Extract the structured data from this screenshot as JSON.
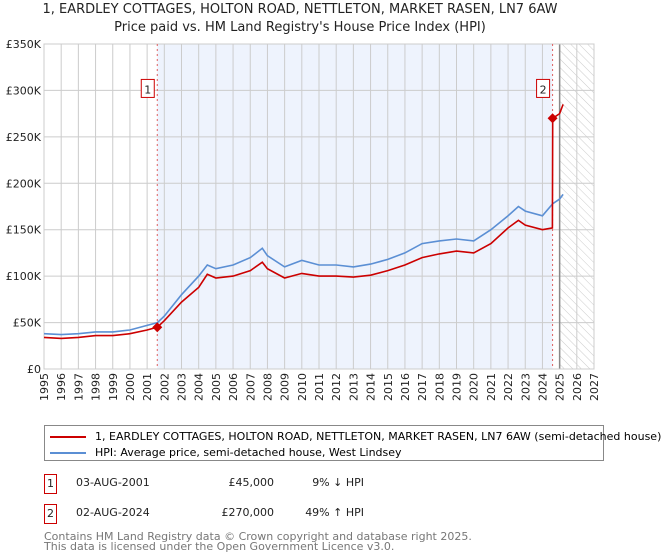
{
  "chart_data": {
    "type": "line",
    "title": "1, EARDLEY COTTAGES, HOLTON ROAD, NETTLETON, MARKET RASEN, LN7 6AW",
    "subtitle": "Price paid vs. HM Land Registry's House Price Index (HPI)",
    "xlim": [
      1995,
      2027
    ],
    "ylim": [
      0,
      350000
    ],
    "x_ticks": [
      "1995",
      "1996",
      "1997",
      "1998",
      "1999",
      "2000",
      "2001",
      "2002",
      "2003",
      "2004",
      "2005",
      "2006",
      "2007",
      "2008",
      "2009",
      "2010",
      "2011",
      "2012",
      "2013",
      "2014",
      "2015",
      "2016",
      "2017",
      "2018",
      "2019",
      "2020",
      "2021",
      "2022",
      "2023",
      "2024",
      "2025",
      "2026",
      "2027"
    ],
    "y_ticks": [
      {
        "v": 0,
        "label": "£0"
      },
      {
        "v": 50000,
        "label": "£50K"
      },
      {
        "v": 100000,
        "label": "£100K"
      },
      {
        "v": 150000,
        "label": "£150K"
      },
      {
        "v": 200000,
        "label": "£200K"
      },
      {
        "v": 250000,
        "label": "£250K"
      },
      {
        "v": 300000,
        "label": "£300K"
      },
      {
        "v": 350000,
        "label": "£350K"
      }
    ],
    "grid": true,
    "series": [
      {
        "name": "1, EARDLEY COTTAGES, HOLTON ROAD, NETTLETON, MARKET RASEN, LN7 6AW (semi-detached house)",
        "color": "#cc0000",
        "x": [
          1995,
          1996,
          1997,
          1998,
          1999,
          2000,
          2001,
          2001.6,
          2002,
          2003,
          2004,
          2004.5,
          2005,
          2006,
          2007,
          2007.7,
          2008,
          2009,
          2010,
          2011,
          2012,
          2013,
          2014,
          2015,
          2016,
          2017,
          2018,
          2019,
          2020,
          2021,
          2022,
          2022.6,
          2023,
          2024,
          2024.58,
          2024.6,
          2025,
          2025.2
        ],
        "y": [
          34000,
          33000,
          34000,
          36000,
          36000,
          38000,
          42000,
          45000,
          52000,
          72000,
          88000,
          102000,
          98000,
          100000,
          106000,
          115000,
          108000,
          98000,
          103000,
          100000,
          100000,
          99000,
          101000,
          106000,
          112000,
          120000,
          124000,
          127000,
          125000,
          135000,
          152000,
          160000,
          155000,
          150000,
          152000,
          270000,
          275000,
          285000
        ]
      },
      {
        "name": "HPI: Average price, semi-detached house, West Lindsey",
        "color": "#5b8fd4",
        "x": [
          1995,
          1996,
          1997,
          1998,
          1999,
          2000,
          2001,
          2001.6,
          2002,
          2003,
          2004,
          2004.5,
          2005,
          2006,
          2007,
          2007.7,
          2008,
          2009,
          2010,
          2011,
          2012,
          2013,
          2014,
          2015,
          2016,
          2017,
          2018,
          2019,
          2020,
          2021,
          2022,
          2022.6,
          2023,
          2024,
          2024.6,
          2025,
          2025.2
        ],
        "y": [
          38000,
          37000,
          38000,
          40000,
          40000,
          42000,
          47000,
          50000,
          57000,
          80000,
          100000,
          112000,
          108000,
          112000,
          120000,
          130000,
          122000,
          110000,
          117000,
          112000,
          112000,
          110000,
          113000,
          118000,
          125000,
          135000,
          138000,
          140000,
          138000,
          150000,
          165000,
          175000,
          170000,
          165000,
          178000,
          183000,
          188000
        ]
      }
    ],
    "sales": [
      {
        "n": "1",
        "x": 2001.59,
        "y": 45000
      },
      {
        "n": "2",
        "x": 2024.59,
        "y": 270000
      }
    ],
    "future_from": 2025
  },
  "legend": {
    "red": "1, EARDLEY COTTAGES, HOLTON ROAD, NETTLETON, MARKET RASEN, LN7 6AW (semi-detached house)",
    "blue": "HPI: Average price, semi-detached house, West Lindsey"
  },
  "table": [
    {
      "n": "1",
      "date": "03-AUG-2001",
      "price": "£45,000",
      "hpi": "9% ↓ HPI"
    },
    {
      "n": "2",
      "date": "02-AUG-2024",
      "price": "£270,000",
      "hpi": "49% ↑ HPI"
    }
  ],
  "footer": {
    "line1": "Contains HM Land Registry data © Crown copyright and database right 2025.",
    "line2": "This data is licensed under the Open Government Licence v3.0."
  }
}
